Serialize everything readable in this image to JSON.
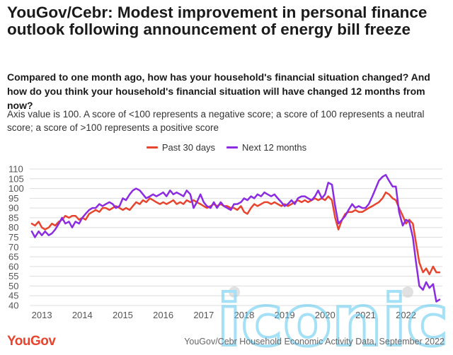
{
  "header": {
    "title": "YouGov/Cebr: Modest improvement in personal finance outlook following announcement of energy bill freeze",
    "subtitle": "Compared to one month ago, how has your household's financial situation changed? And how do you think your household's financial situation will have changed 12 months from now?",
    "note": "Axis value is 100. A score of <100 represents a negative score; a score of 100 represents a neutral score; a score of >100 represents a positive score"
  },
  "footer": {
    "logo": "YouGov",
    "source": "YouGov/Cebr Household Economic Activity Data, September 2022"
  },
  "watermark": {
    "text": "iconic"
  },
  "colors": {
    "past": "#e8442e",
    "next": "#8b2be2",
    "grid": "#dddddd",
    "axis_text": "#555555",
    "watermark": "#5bc8f0"
  },
  "chart_data": {
    "type": "line",
    "title": "",
    "xlabel": "",
    "ylabel": "",
    "ylim": [
      40,
      110
    ],
    "yticks": [
      40,
      45,
      50,
      55,
      60,
      65,
      70,
      75,
      80,
      85,
      90,
      95,
      100,
      105,
      110
    ],
    "xlim": [
      2012.7,
      2022.9
    ],
    "xticks": [
      "2013",
      "2014",
      "2015",
      "2016",
      "2017",
      "2018",
      "2019",
      "2020",
      "2021",
      "2022"
    ],
    "grid": true,
    "legend_position": "top-center",
    "series": [
      {
        "name": "Past 30 days",
        "points": [
          [
            2012.75,
            82
          ],
          [
            2012.83,
            81
          ],
          [
            2012.92,
            83
          ],
          [
            2013.0,
            80
          ],
          [
            2013.08,
            79
          ],
          [
            2013.17,
            80
          ],
          [
            2013.25,
            82
          ],
          [
            2013.33,
            81
          ],
          [
            2013.42,
            83
          ],
          [
            2013.5,
            84
          ],
          [
            2013.58,
            86
          ],
          [
            2013.67,
            85
          ],
          [
            2013.75,
            86
          ],
          [
            2013.83,
            86
          ],
          [
            2013.92,
            84
          ],
          [
            2014.0,
            85
          ],
          [
            2014.08,
            84
          ],
          [
            2014.17,
            87
          ],
          [
            2014.25,
            88
          ],
          [
            2014.33,
            89
          ],
          [
            2014.42,
            88
          ],
          [
            2014.5,
            90
          ],
          [
            2014.58,
            90
          ],
          [
            2014.67,
            89
          ],
          [
            2014.75,
            90
          ],
          [
            2014.83,
            91
          ],
          [
            2014.92,
            90
          ],
          [
            2015.0,
            89
          ],
          [
            2015.08,
            90
          ],
          [
            2015.17,
            89
          ],
          [
            2015.25,
            91
          ],
          [
            2015.33,
            93
          ],
          [
            2015.42,
            92
          ],
          [
            2015.5,
            94
          ],
          [
            2015.58,
            93
          ],
          [
            2015.67,
            95
          ],
          [
            2015.75,
            94
          ],
          [
            2015.83,
            93
          ],
          [
            2015.92,
            92
          ],
          [
            2016.0,
            93
          ],
          [
            2016.08,
            92
          ],
          [
            2016.17,
            93
          ],
          [
            2016.25,
            94
          ],
          [
            2016.33,
            92
          ],
          [
            2016.42,
            93
          ],
          [
            2016.5,
            92
          ],
          [
            2016.58,
            94
          ],
          [
            2016.67,
            93
          ],
          [
            2016.75,
            94
          ],
          [
            2016.83,
            93
          ],
          [
            2016.92,
            92
          ],
          [
            2017.0,
            91
          ],
          [
            2017.08,
            90
          ],
          [
            2017.17,
            91
          ],
          [
            2017.25,
            92
          ],
          [
            2017.33,
            91
          ],
          [
            2017.42,
            92
          ],
          [
            2017.5,
            91
          ],
          [
            2017.58,
            91
          ],
          [
            2017.67,
            90
          ],
          [
            2017.75,
            90
          ],
          [
            2017.83,
            89
          ],
          [
            2017.92,
            91
          ],
          [
            2018.0,
            88
          ],
          [
            2018.08,
            87
          ],
          [
            2018.17,
            90
          ],
          [
            2018.25,
            92
          ],
          [
            2018.33,
            91
          ],
          [
            2018.42,
            92
          ],
          [
            2018.5,
            93
          ],
          [
            2018.58,
            93
          ],
          [
            2018.67,
            92
          ],
          [
            2018.75,
            93
          ],
          [
            2018.83,
            92
          ],
          [
            2018.92,
            91
          ],
          [
            2019.0,
            92
          ],
          [
            2019.08,
            91
          ],
          [
            2019.17,
            92
          ],
          [
            2019.25,
            93
          ],
          [
            2019.33,
            94
          ],
          [
            2019.42,
            93
          ],
          [
            2019.5,
            94
          ],
          [
            2019.58,
            93
          ],
          [
            2019.67,
            94
          ],
          [
            2019.75,
            95
          ],
          [
            2019.83,
            94
          ],
          [
            2019.92,
            95
          ],
          [
            2020.0,
            94
          ],
          [
            2020.08,
            96
          ],
          [
            2020.17,
            94
          ],
          [
            2020.25,
            85
          ],
          [
            2020.33,
            79
          ],
          [
            2020.42,
            84
          ],
          [
            2020.5,
            87
          ],
          [
            2020.58,
            88
          ],
          [
            2020.67,
            88
          ],
          [
            2020.75,
            89
          ],
          [
            2020.83,
            88
          ],
          [
            2020.92,
            88
          ],
          [
            2021.0,
            89
          ],
          [
            2021.08,
            90
          ],
          [
            2021.17,
            91
          ],
          [
            2021.25,
            92
          ],
          [
            2021.33,
            93
          ],
          [
            2021.42,
            95
          ],
          [
            2021.5,
            98
          ],
          [
            2021.58,
            97
          ],
          [
            2021.67,
            95
          ],
          [
            2021.75,
            94
          ],
          [
            2021.83,
            90
          ],
          [
            2021.92,
            86
          ],
          [
            2022.0,
            82
          ],
          [
            2022.08,
            84
          ],
          [
            2022.17,
            82
          ],
          [
            2022.25,
            72
          ],
          [
            2022.33,
            62
          ],
          [
            2022.42,
            57
          ],
          [
            2022.5,
            59
          ],
          [
            2022.58,
            56
          ],
          [
            2022.67,
            60
          ],
          [
            2022.75,
            57
          ],
          [
            2022.83,
            57
          ]
        ]
      },
      {
        "name": "Next 12 months",
        "points": [
          [
            2012.75,
            78
          ],
          [
            2012.83,
            75
          ],
          [
            2012.92,
            78
          ],
          [
            2013.0,
            76
          ],
          [
            2013.08,
            78
          ],
          [
            2013.17,
            76
          ],
          [
            2013.25,
            77
          ],
          [
            2013.33,
            79
          ],
          [
            2013.42,
            82
          ],
          [
            2013.5,
            85
          ],
          [
            2013.58,
            82
          ],
          [
            2013.67,
            83
          ],
          [
            2013.75,
            80
          ],
          [
            2013.83,
            83
          ],
          [
            2013.92,
            82
          ],
          [
            2014.0,
            85
          ],
          [
            2014.08,
            87
          ],
          [
            2014.17,
            89
          ],
          [
            2014.25,
            90
          ],
          [
            2014.33,
            90
          ],
          [
            2014.42,
            92
          ],
          [
            2014.5,
            91
          ],
          [
            2014.58,
            92
          ],
          [
            2014.67,
            93
          ],
          [
            2014.75,
            92
          ],
          [
            2014.83,
            90
          ],
          [
            2014.92,
            91
          ],
          [
            2015.0,
            95
          ],
          [
            2015.08,
            94
          ],
          [
            2015.17,
            97
          ],
          [
            2015.25,
            99
          ],
          [
            2015.33,
            100
          ],
          [
            2015.42,
            99
          ],
          [
            2015.5,
            97
          ],
          [
            2015.58,
            95
          ],
          [
            2015.67,
            96
          ],
          [
            2015.75,
            97
          ],
          [
            2015.83,
            96
          ],
          [
            2015.92,
            97
          ],
          [
            2016.0,
            98
          ],
          [
            2016.08,
            96
          ],
          [
            2016.17,
            99
          ],
          [
            2016.25,
            97
          ],
          [
            2016.33,
            98
          ],
          [
            2016.42,
            97
          ],
          [
            2016.5,
            96
          ],
          [
            2016.58,
            99
          ],
          [
            2016.67,
            97
          ],
          [
            2016.75,
            90
          ],
          [
            2016.83,
            93
          ],
          [
            2016.92,
            97
          ],
          [
            2017.0,
            93
          ],
          [
            2017.08,
            91
          ],
          [
            2017.17,
            90
          ],
          [
            2017.25,
            93
          ],
          [
            2017.33,
            90
          ],
          [
            2017.42,
            93
          ],
          [
            2017.5,
            91
          ],
          [
            2017.58,
            90
          ],
          [
            2017.67,
            89
          ],
          [
            2017.75,
            92
          ],
          [
            2017.83,
            92
          ],
          [
            2017.92,
            93
          ],
          [
            2018.0,
            95
          ],
          [
            2018.08,
            94
          ],
          [
            2018.17,
            96
          ],
          [
            2018.25,
            95
          ],
          [
            2018.33,
            97
          ],
          [
            2018.42,
            96
          ],
          [
            2018.5,
            98
          ],
          [
            2018.58,
            97
          ],
          [
            2018.67,
            96
          ],
          [
            2018.75,
            97
          ],
          [
            2018.83,
            95
          ],
          [
            2018.92,
            93
          ],
          [
            2019.0,
            91
          ],
          [
            2019.08,
            92
          ],
          [
            2019.17,
            94
          ],
          [
            2019.25,
            92
          ],
          [
            2019.33,
            95
          ],
          [
            2019.42,
            96
          ],
          [
            2019.5,
            96
          ],
          [
            2019.58,
            95
          ],
          [
            2019.67,
            94
          ],
          [
            2019.75,
            96
          ],
          [
            2019.83,
            99
          ],
          [
            2019.92,
            95
          ],
          [
            2020.0,
            97
          ],
          [
            2020.08,
            103
          ],
          [
            2020.17,
            102
          ],
          [
            2020.25,
            91
          ],
          [
            2020.33,
            82
          ],
          [
            2020.42,
            84
          ],
          [
            2020.5,
            86
          ],
          [
            2020.58,
            89
          ],
          [
            2020.67,
            92
          ],
          [
            2020.75,
            90
          ],
          [
            2020.83,
            91
          ],
          [
            2020.92,
            90
          ],
          [
            2021.0,
            90
          ],
          [
            2021.08,
            92
          ],
          [
            2021.17,
            96
          ],
          [
            2021.25,
            100
          ],
          [
            2021.33,
            104
          ],
          [
            2021.42,
            106
          ],
          [
            2021.5,
            107
          ],
          [
            2021.58,
            104
          ],
          [
            2021.67,
            101
          ],
          [
            2021.75,
            101
          ],
          [
            2021.83,
            88
          ],
          [
            2021.92,
            81
          ],
          [
            2022.0,
            84
          ],
          [
            2022.08,
            83
          ],
          [
            2022.17,
            75
          ],
          [
            2022.25,
            62
          ],
          [
            2022.33,
            50
          ],
          [
            2022.42,
            48
          ],
          [
            2022.5,
            52
          ],
          [
            2022.58,
            49
          ],
          [
            2022.67,
            51
          ],
          [
            2022.75,
            42
          ],
          [
            2022.83,
            43
          ]
        ]
      }
    ]
  }
}
